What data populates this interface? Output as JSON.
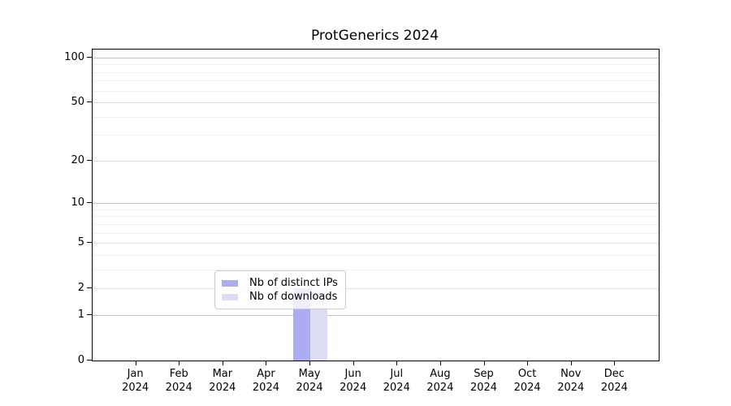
{
  "chart_data": {
    "type": "bar",
    "title": "ProtGenerics 2024",
    "categories": [
      "Jan 2024",
      "Feb 2024",
      "Mar 2024",
      "Apr 2024",
      "May 2024",
      "Jun 2024",
      "Jul 2024",
      "Aug 2024",
      "Sep 2024",
      "Oct 2024",
      "Nov 2024",
      "Dec 2024"
    ],
    "series": [
      {
        "name": "Nb of distinct IPs",
        "color": "#acacf2",
        "values": [
          0,
          0,
          0,
          0,
          2,
          0,
          0,
          0,
          0,
          0,
          0,
          0
        ]
      },
      {
        "name": "Nb of downloads",
        "color": "#dcdcf5",
        "values": [
          0,
          0,
          0,
          0,
          2,
          0,
          0,
          0,
          0,
          0,
          0,
          0
        ]
      }
    ],
    "xlabel": "",
    "ylabel": "",
    "yscale": "log1p",
    "ylim": [
      0,
      113
    ],
    "yticks": [
      0,
      1,
      2,
      5,
      10,
      20,
      50,
      100
    ],
    "grid": "horizontal",
    "legend_position": "inside-lower-center"
  }
}
